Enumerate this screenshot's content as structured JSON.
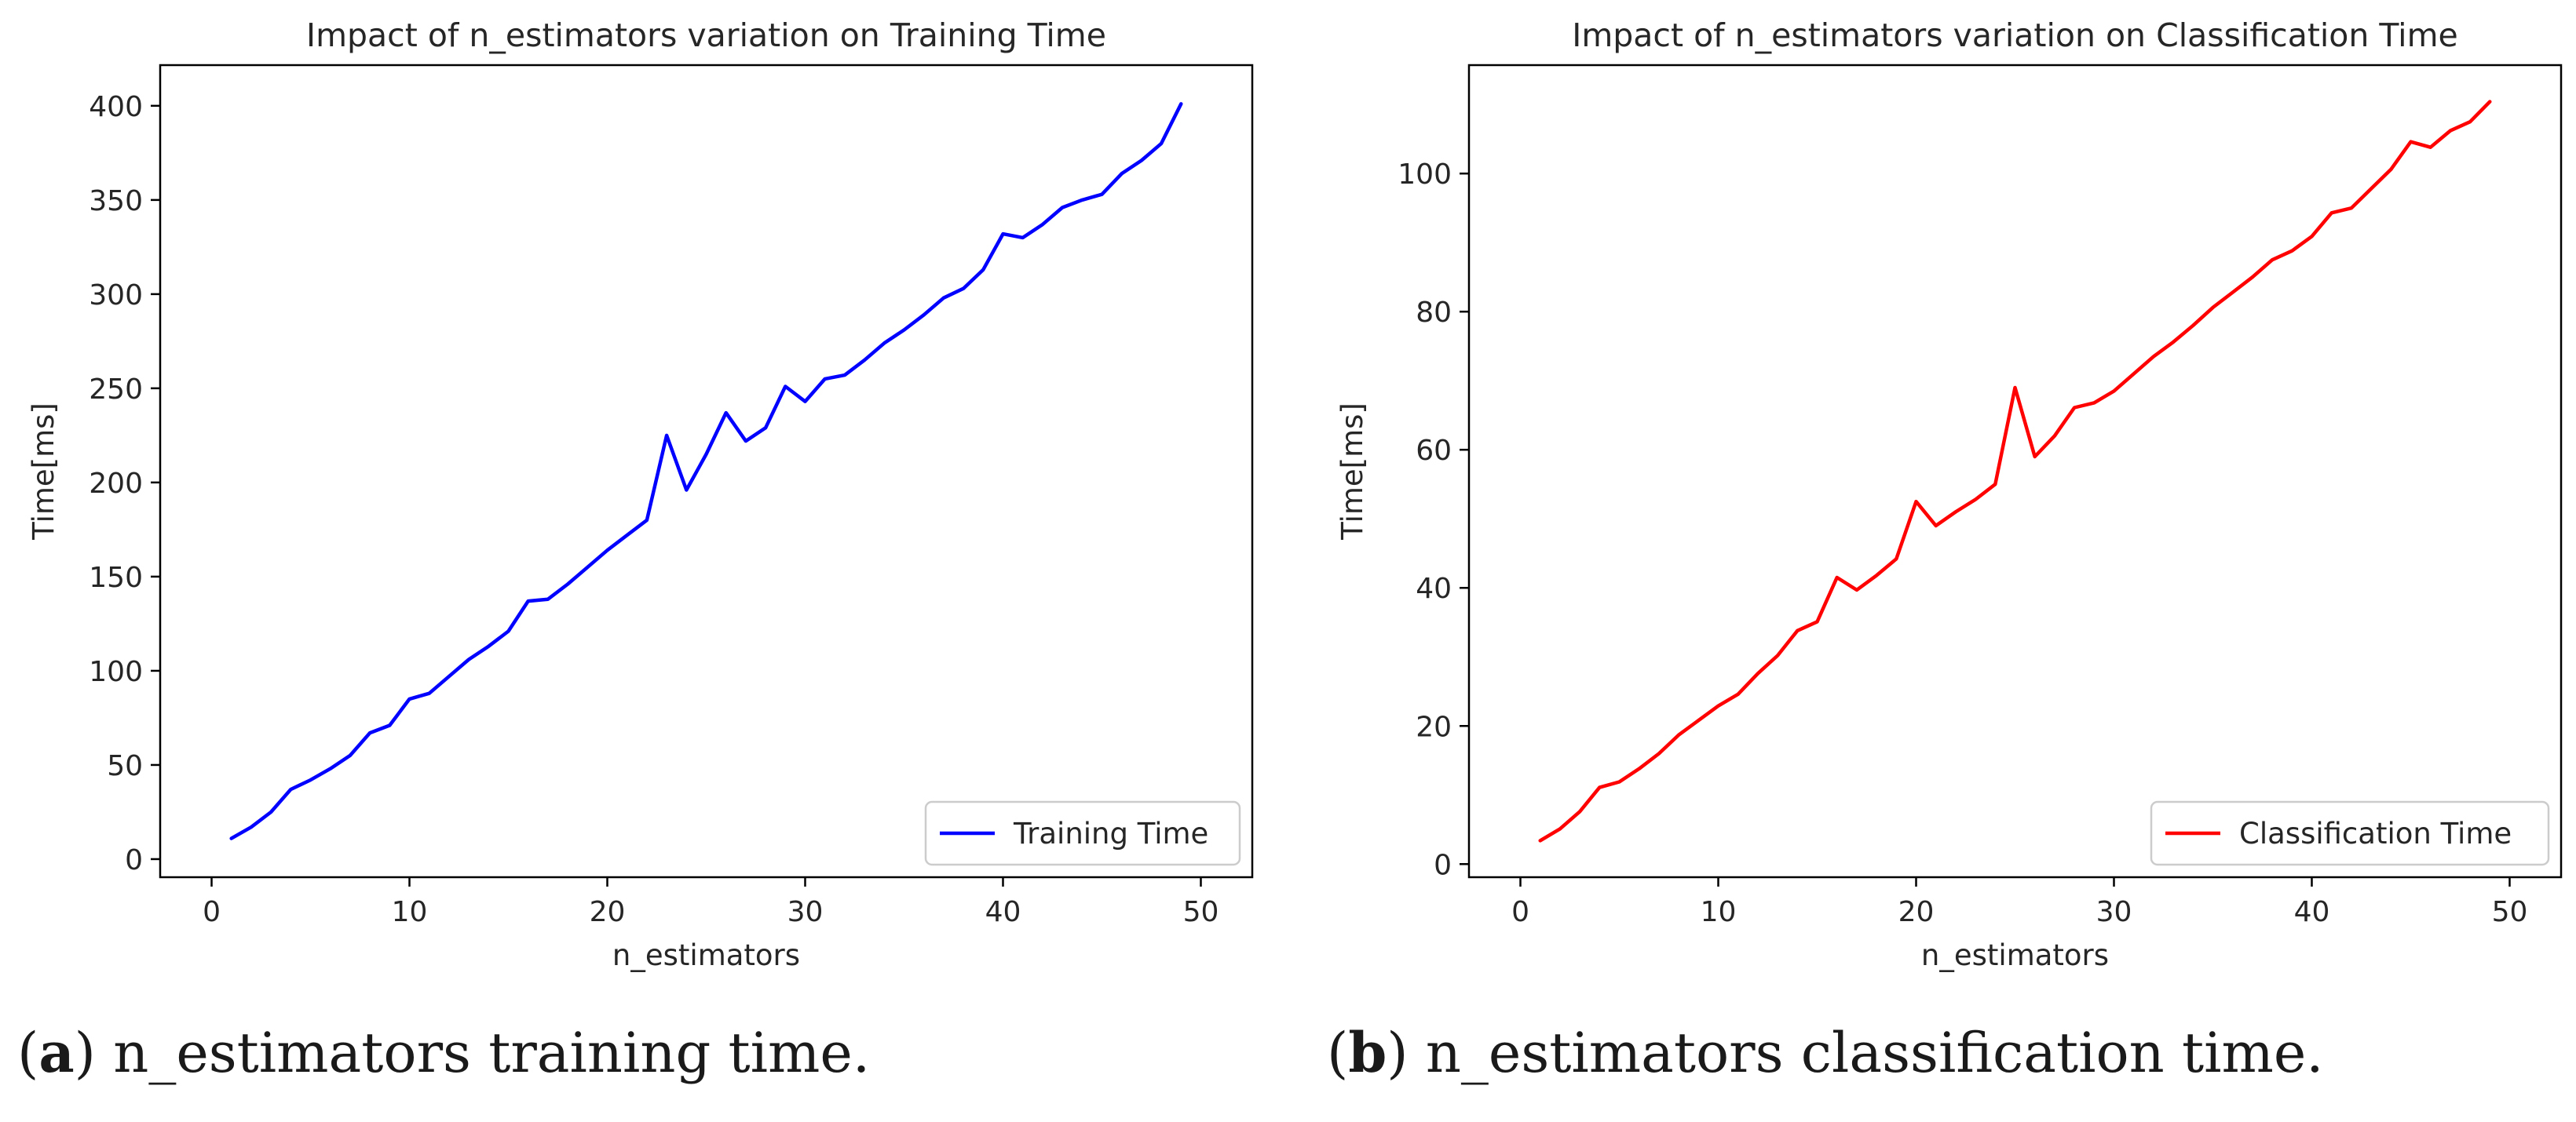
{
  "chart_data": [
    {
      "type": "line",
      "title": "Impact of n_estimators variation on Training Time",
      "xlabel": "n_estimators",
      "ylabel": "Time[ms]",
      "xlim": [
        -2.6,
        52.6
      ],
      "ylim": [
        -9.6,
        421.6
      ],
      "xticks": [
        0,
        10,
        20,
        30,
        40,
        50
      ],
      "yticks": [
        0,
        50,
        100,
        150,
        200,
        250,
        300,
        350,
        400
      ],
      "grid": false,
      "legend": "bottom-right",
      "series": [
        {
          "name": "Training Time",
          "color": "#0000ff",
          "x": [
            1,
            2,
            3,
            4,
            5,
            6,
            7,
            8,
            9,
            10,
            11,
            12,
            13,
            14,
            15,
            16,
            17,
            18,
            19,
            20,
            21,
            22,
            23,
            24,
            25,
            26,
            27,
            28,
            29,
            30,
            31,
            32,
            33,
            34,
            35,
            36,
            37,
            38,
            39,
            40,
            41,
            42,
            43,
            44,
            45,
            46,
            47,
            48,
            49
          ],
          "values": [
            11,
            17,
            25,
            37,
            42,
            48,
            55,
            67,
            71,
            85,
            88,
            97,
            106,
            113,
            121,
            137,
            138,
            146,
            155,
            164,
            172,
            180,
            225,
            196,
            215,
            237,
            222,
            229,
            251,
            243,
            255,
            257,
            265,
            274,
            281,
            289,
            298,
            303,
            313,
            332,
            330,
            337,
            346,
            350,
            353,
            364,
            371,
            380,
            401
          ]
        }
      ]
    },
    {
      "type": "line",
      "title": "Impact of n_estimators variation on Classification Time",
      "xlabel": "n_estimators",
      "ylabel": "Time[ms]",
      "xlim": [
        -2.6,
        52.6
      ],
      "ylim": [
        -1.9,
        115.7
      ],
      "xticks": [
        0,
        10,
        20,
        30,
        40,
        50
      ],
      "yticks": [
        0,
        20,
        40,
        60,
        80,
        100
      ],
      "grid": false,
      "legend": "bottom-right",
      "series": [
        {
          "name": "Classification Time",
          "color": "#ff0000",
          "x": [
            1,
            2,
            3,
            4,
            5,
            6,
            7,
            8,
            9,
            10,
            11,
            12,
            13,
            14,
            15,
            16,
            17,
            18,
            19,
            20,
            21,
            22,
            23,
            24,
            25,
            26,
            27,
            28,
            29,
            30,
            31,
            32,
            33,
            34,
            35,
            36,
            37,
            38,
            39,
            40,
            41,
            42,
            43,
            44,
            45,
            46,
            47,
            48,
            49
          ],
          "values": [
            3.4,
            5.1,
            7.6,
            11.1,
            11.9,
            13.8,
            16,
            18.7,
            20.8,
            22.9,
            24.6,
            27.6,
            30.2,
            33.8,
            35.1,
            41.5,
            39.7,
            41.8,
            44.2,
            52.5,
            49,
            51,
            52.8,
            55,
            69,
            59,
            62,
            66.1,
            66.8,
            68.5,
            71,
            73.5,
            75.6,
            78,
            80.6,
            82.8,
            85,
            87.5,
            88.8,
            90.9,
            94.3,
            95,
            97.8,
            100.6,
            104.6,
            103.8,
            106.2,
            107.5,
            110.4
          ]
        }
      ]
    }
  ],
  "captions": [
    {
      "label": "a",
      "text": " n_estimators training time."
    },
    {
      "label": "b",
      "text": " n_estimators classification time."
    }
  ]
}
